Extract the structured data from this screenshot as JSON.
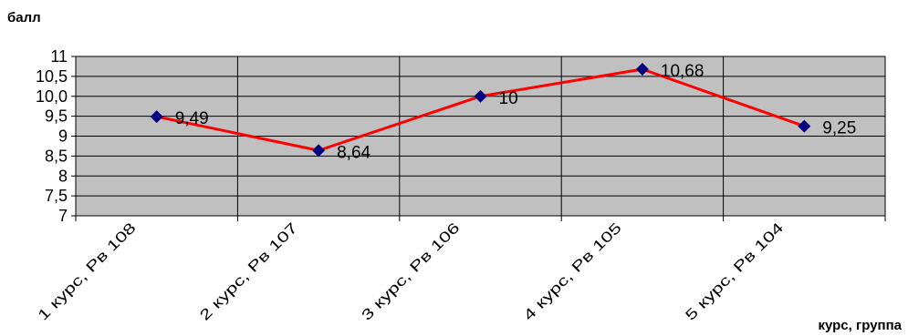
{
  "chart_data": {
    "type": "line",
    "ylabel": "балл",
    "xlabel": "курс, группа",
    "categories": [
      "1 курс, Рв 108",
      "2 курс, Рв 107",
      "3 курс, Рв 106",
      "4 курс, Рв 105",
      "5 курс, Рв 104"
    ],
    "series": [
      {
        "values": [
          9.49,
          8.64,
          10,
          10.68,
          9.25
        ],
        "data_labels": [
          "9,49",
          "8,64",
          "10",
          "10,68",
          "9,25"
        ],
        "line_color": "#ff0000",
        "marker_color": "#000080"
      }
    ],
    "ylim": [
      7,
      11
    ],
    "yticks": [
      7,
      7.5,
      8,
      8.5,
      9,
      9.5,
      10,
      10.5,
      11
    ],
    "ytick_labels": [
      "7",
      "7,5",
      "8",
      "8,5",
      "9",
      "9,5",
      "10,0",
      "10,5",
      "11"
    ],
    "grid": true,
    "plot_background": "#c0c0c0"
  }
}
